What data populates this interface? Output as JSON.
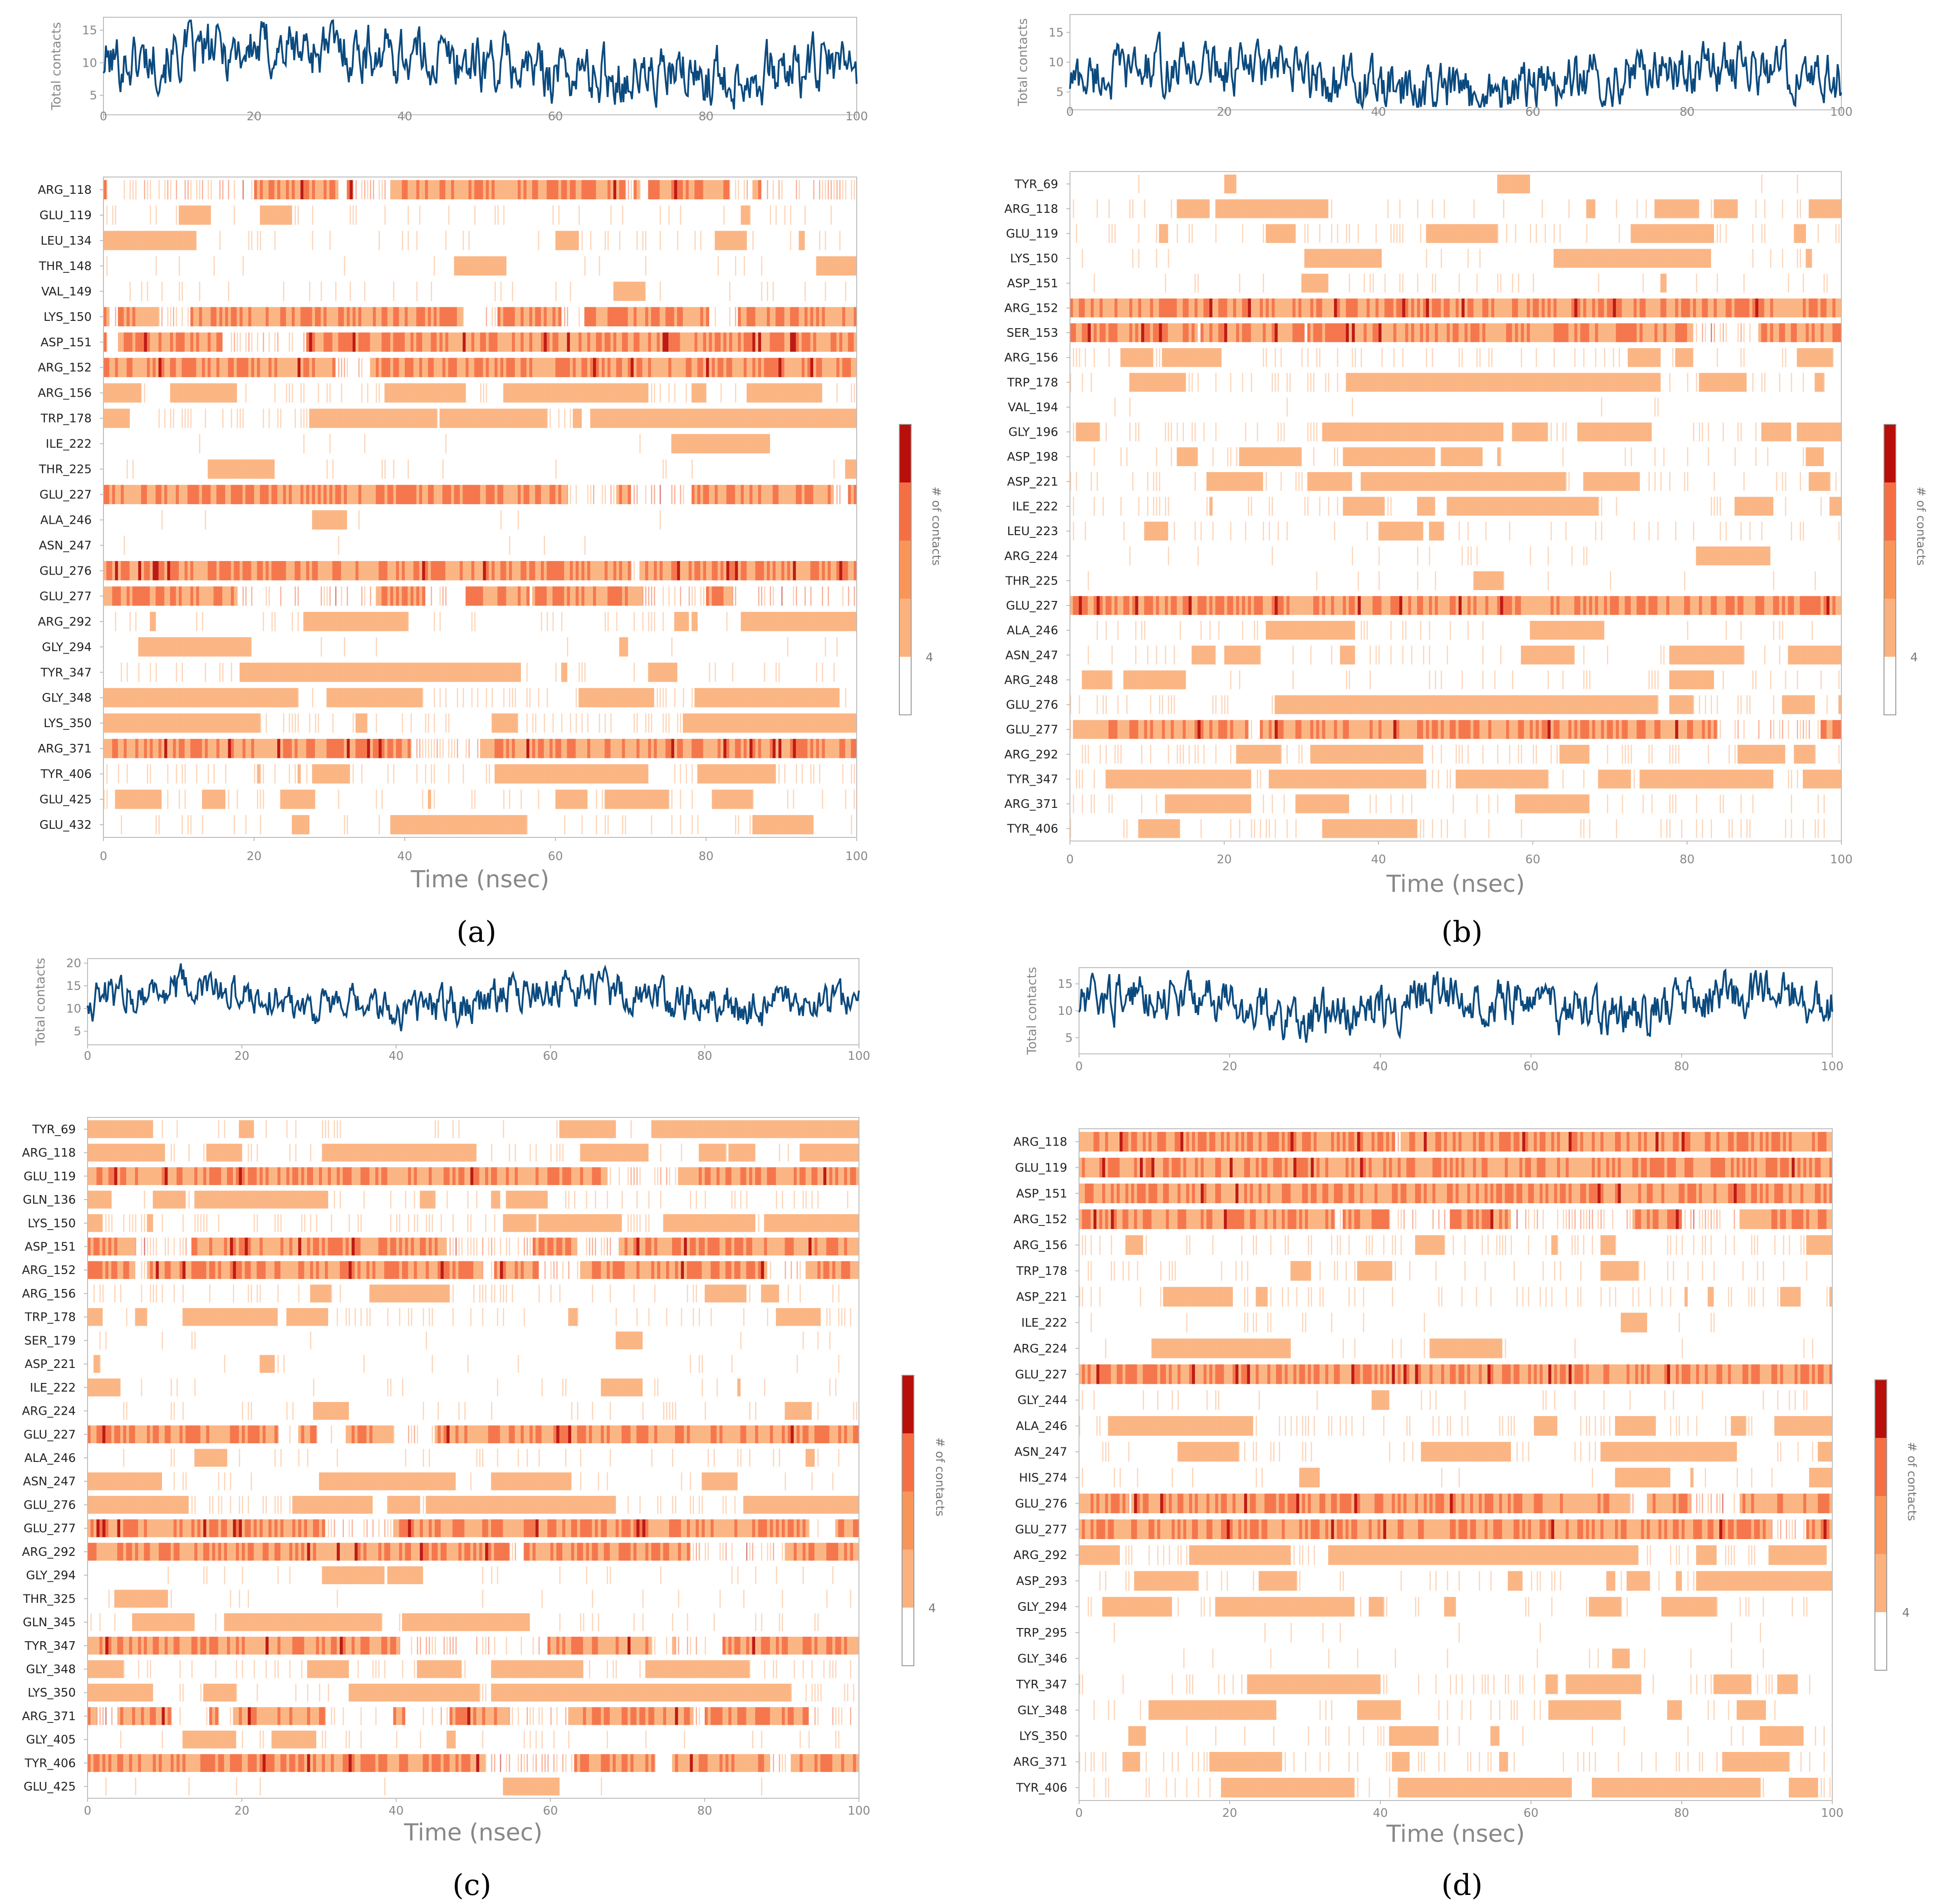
{
  "colors": {
    "line": "#0b4a7e",
    "heat": [
      "#fbb27e",
      "#f47044",
      "#b80f0a"
    ],
    "frame": "#bbbbbb"
  },
  "chart_data": [
    {
      "panel_label": "(a)",
      "type": "heatmap",
      "top": {
        "ylabel": "Total contacts",
        "yticks": [
          5,
          10,
          15
        ],
        "ylim": [
          2,
          17
        ]
      },
      "xlabel": "Time (nsec)",
      "xticks": [
        0,
        20,
        40,
        60,
        80,
        100
      ],
      "xlim": [
        0,
        100
      ],
      "colorbar": {
        "label": "# of contacts",
        "tick": "4"
      },
      "residues": [
        "ARG_118",
        "GLU_119",
        "LEU_134",
        "THR_148",
        "VAL_149",
        "LYS_150",
        "ASP_151",
        "ARG_152",
        "ARG_156",
        "TRP_178",
        "ILE_222",
        "THR_225",
        "GLU_227",
        "ALA_246",
        "ASN_247",
        "GLU_276",
        "GLU_277",
        "ARG_292",
        "GLY_294",
        "TYR_347",
        "GLY_348",
        "LYS_350",
        "ARG_371",
        "TYR_406",
        "GLU_425",
        "GLU_432"
      ],
      "contact_density": [
        0.75,
        0.25,
        0.35,
        0.1,
        0.15,
        0.7,
        0.9,
        0.95,
        0.4,
        0.55,
        0.05,
        0.1,
        0.8,
        0.05,
        0.05,
        0.95,
        0.75,
        0.2,
        0.05,
        0.3,
        0.5,
        0.5,
        0.9,
        0.4,
        0.35,
        0.2
      ]
    },
    {
      "panel_label": "(b)",
      "type": "heatmap",
      "top": {
        "ylabel": "Total contacts",
        "yticks": [
          5,
          10,
          15
        ],
        "ylim": [
          2,
          18
        ]
      },
      "xlabel": "Time (nsec)",
      "xticks": [
        0,
        20,
        40,
        60,
        80,
        100
      ],
      "xlim": [
        0,
        100
      ],
      "colorbar": {
        "label": "# of contacts",
        "tick": "4"
      },
      "residues": [
        "TYR_69",
        "ARG_118",
        "GLU_119",
        "LYS_150",
        "ASP_151",
        "ARG_152",
        "SER_153",
        "ARG_156",
        "TRP_178",
        "VAL_194",
        "GLY_196",
        "ASP_198",
        "ASP_221",
        "ILE_222",
        "LEU_223",
        "ARG_224",
        "THR_225",
        "GLU_227",
        "ALA_246",
        "ASN_247",
        "ARG_248",
        "GLU_276",
        "GLU_277",
        "ARG_292",
        "TYR_347",
        "ARG_371",
        "TYR_406"
      ],
      "contact_density": [
        0.05,
        0.3,
        0.3,
        0.1,
        0.15,
        1.0,
        0.8,
        0.35,
        0.4,
        0.05,
        0.45,
        0.2,
        0.4,
        0.3,
        0.25,
        0.15,
        0.1,
        0.95,
        0.3,
        0.3,
        0.25,
        0.45,
        0.85,
        0.4,
        0.5,
        0.3,
        0.35
      ]
    },
    {
      "panel_label": "(c)",
      "type": "heatmap",
      "top": {
        "ylabel": "Total contacts",
        "yticks": [
          5,
          10,
          15,
          20
        ],
        "ylim": [
          2,
          21
        ]
      },
      "xlabel": "Time (nsec)",
      "xticks": [
        0,
        20,
        40,
        60,
        80,
        100
      ],
      "xlim": [
        0,
        100
      ],
      "colorbar": {
        "label": "# of contacts",
        "tick": "4"
      },
      "residues": [
        "TYR_69",
        "ARG_118",
        "GLU_119",
        "GLN_136",
        "LYS_150",
        "ASP_151",
        "ARG_152",
        "ARG_156",
        "TRP_178",
        "SER_179",
        "ASP_221",
        "ILE_222",
        "ARG_224",
        "GLU_227",
        "ALA_246",
        "ASN_247",
        "GLU_276",
        "GLU_277",
        "ARG_292",
        "GLY_294",
        "THR_325",
        "GLN_345",
        "TYR_347",
        "GLY_348",
        "LYS_350",
        "ARG_371",
        "GLY_405",
        "TYR_406",
        "GLU_425"
      ],
      "contact_density": [
        0.2,
        0.35,
        0.85,
        0.35,
        0.5,
        0.9,
        0.85,
        0.4,
        0.45,
        0.05,
        0.1,
        0.15,
        0.2,
        0.8,
        0.15,
        0.2,
        0.6,
        0.85,
        0.95,
        0.1,
        0.1,
        0.25,
        0.75,
        0.5,
        0.4,
        0.75,
        0.2,
        0.85,
        0.05
      ]
    },
    {
      "panel_label": "(d)",
      "type": "heatmap",
      "top": {
        "ylabel": "Total contacts",
        "yticks": [
          5,
          10,
          15
        ],
        "ylim": [
          2,
          18
        ]
      },
      "xlabel": "Time (nsec)",
      "xticks": [
        0,
        20,
        40,
        60,
        80,
        100
      ],
      "xlim": [
        0,
        100
      ],
      "colorbar": {
        "label": "# of contacts",
        "tick": "4"
      },
      "residues": [
        "ARG_118",
        "GLU_119",
        "ASP_151",
        "ARG_152",
        "ARG_156",
        "TRP_178",
        "ASP_221",
        "ILE_222",
        "ARG_224",
        "GLU_227",
        "GLY_244",
        "ALA_246",
        "ASN_247",
        "HIS_274",
        "GLU_276",
        "GLU_277",
        "ARG_292",
        "ASP_293",
        "GLY_294",
        "TRP_295",
        "GLY_346",
        "TYR_347",
        "GLY_348",
        "LYS_350",
        "ARG_371",
        "TYR_406"
      ],
      "contact_density": [
        0.9,
        1.0,
        0.95,
        0.8,
        0.4,
        0.3,
        0.35,
        0.05,
        0.1,
        1.0,
        0.15,
        0.5,
        0.3,
        0.1,
        0.85,
        0.95,
        0.6,
        0.3,
        0.25,
        0.05,
        0.1,
        0.35,
        0.25,
        0.1,
        0.45,
        0.4
      ]
    }
  ]
}
